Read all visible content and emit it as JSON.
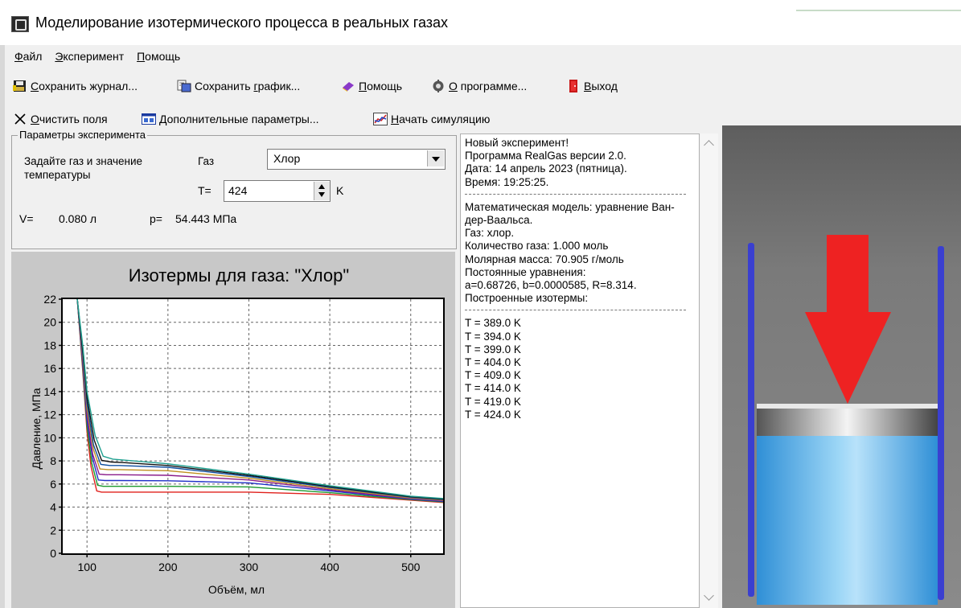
{
  "window": {
    "title": "Моделирование изотермического процесса в реальных газах"
  },
  "menu": {
    "items": [
      {
        "key": "Ф",
        "rest": "айл"
      },
      {
        "key": "Э",
        "rest": "ксперимент"
      },
      {
        "key": "П",
        "rest": "омощь"
      }
    ]
  },
  "toolbar1": {
    "save_log": {
      "key": "С",
      "rest": "охранить журнал..."
    },
    "save_chart": {
      "pre": "Сохранить ",
      "key": "г",
      "rest": "рафик..."
    },
    "help": {
      "key": "П",
      "rest": "омощь"
    },
    "about": {
      "key": "О",
      "rest": " программе..."
    },
    "exit": {
      "key": "В",
      "rest": "ыход"
    }
  },
  "toolbar2": {
    "clear": {
      "key": "О",
      "rest": "чистить поля"
    },
    "params": {
      "key": "Д",
      "rest": "ополнительные параметры..."
    },
    "start": {
      "key": "Н",
      "rest": "ачать симуляцию"
    }
  },
  "params": {
    "legend": "Параметры эксперимента",
    "hint": "Задайте газ и значение температуры",
    "gas_label": "Газ",
    "gas_value": "Хлор",
    "t_label": "T=",
    "t_value": "424",
    "t_unit": "K",
    "v_label": "V=",
    "v_value": "0.080 л",
    "p_label": "p=",
    "p_value": "54.443 МПа"
  },
  "chart_data": {
    "type": "line",
    "title": "Изотермы для газа: \"Хлор\"",
    "xlabel": "Объём, мл",
    "ylabel": "Давление, МПа",
    "xlim": [
      70,
      540
    ],
    "ylim": [
      0,
      22
    ],
    "xticks": [
      100,
      200,
      300,
      400,
      500
    ],
    "yticks": [
      0,
      2,
      4,
      6,
      8,
      10,
      12,
      14,
      16,
      18,
      20,
      22
    ],
    "grid": true,
    "series": [
      {
        "color": "#e0201c",
        "x": [
          88,
          95,
          100,
          105,
          112,
          118,
          140,
          200,
          300,
          400,
          450,
          500,
          540
        ],
        "y": [
          22,
          15.5,
          10.5,
          7.5,
          5.4,
          5.3,
          5.3,
          5.3,
          5.3,
          5.1,
          4.85,
          4.6,
          4.4
        ]
      },
      {
        "color": "#1c9a2e",
        "x": [
          88,
          95,
          100,
          106,
          113,
          120,
          140,
          200,
          300,
          400,
          450,
          500,
          540
        ],
        "y": [
          22,
          15.8,
          11,
          7.8,
          5.9,
          5.8,
          5.8,
          5.8,
          5.75,
          5.25,
          4.95,
          4.65,
          4.45
        ]
      },
      {
        "color": "#2030c8",
        "x": [
          88,
          95,
          100,
          107,
          114,
          122,
          140,
          200,
          300,
          400,
          450,
          500,
          540
        ],
        "y": [
          22,
          16.1,
          11.5,
          8.2,
          6.35,
          6.3,
          6.3,
          6.28,
          6.1,
          5.4,
          5.05,
          4.7,
          4.5
        ]
      },
      {
        "color": "#8a1c8a",
        "x": [
          88,
          95,
          100,
          107,
          115,
          124,
          140,
          200,
          300,
          400,
          450,
          500,
          540
        ],
        "y": [
          22,
          16.4,
          12,
          8.6,
          6.85,
          6.8,
          6.8,
          6.75,
          6.35,
          5.5,
          5.12,
          4.75,
          4.55
        ]
      },
      {
        "color": "#c09020",
        "x": [
          88,
          95,
          100,
          108,
          116,
          126,
          140,
          200,
          300,
          400,
          450,
          500,
          540
        ],
        "y": [
          22,
          16.8,
          12.5,
          9,
          7.3,
          7.25,
          7.25,
          7.15,
          6.5,
          5.6,
          5.2,
          4.8,
          4.6
        ]
      },
      {
        "color": "#1050a0",
        "x": [
          88,
          95,
          100,
          108,
          117,
          128,
          140,
          200,
          300,
          400,
          450,
          500,
          540
        ],
        "y": [
          22,
          17.1,
          13,
          9.4,
          7.7,
          7.6,
          7.6,
          7.45,
          6.65,
          5.7,
          5.28,
          4.85,
          4.65
        ]
      },
      {
        "color": "#101010",
        "x": [
          88,
          95,
          100,
          109,
          118,
          130,
          145,
          200,
          300,
          400,
          450,
          500,
          540
        ],
        "y": [
          22,
          17.4,
          13.5,
          9.8,
          8.05,
          7.9,
          7.85,
          7.6,
          6.75,
          5.78,
          5.33,
          4.9,
          4.7
        ]
      },
      {
        "color": "#20a090",
        "x": [
          88,
          95,
          100,
          110,
          120,
          132,
          150,
          200,
          300,
          400,
          450,
          500,
          540
        ],
        "y": [
          22,
          17.8,
          14,
          10.2,
          8.4,
          8.15,
          8.05,
          7.75,
          6.85,
          5.85,
          5.4,
          4.95,
          4.75
        ]
      }
    ]
  },
  "log": {
    "block1": [
      "Новый эксперимент!",
      "Программа RealGas версии 2.0.",
      "Дата: 14 апрель 2023 (пятница).",
      "Время: 19:25:25."
    ],
    "block2": [
      "Математическая модель: уравнение Ван-дер-Ваальса.",
      "Газ: хлор.",
      "Количество газа: 1.000 моль",
      "Молярная масса: 70.905 г/моль",
      "Постоянные уравнения:",
      "a=0.68726, b=0.0000585, R=8.314.",
      "Построенные изотермы:"
    ],
    "block3": [
      "T = 389.0 K",
      "T = 394.0 K",
      "T = 399.0 K",
      "T = 404.0 K",
      "T = 409.0 K",
      "T = 414.0 K",
      "T = 419.0 K",
      "T = 424.0 K"
    ]
  },
  "colors": {
    "chart_bg": "#c8c8c8",
    "arrow": "#ee2222",
    "cylinder_wall": "#3a3fd0",
    "gas": "#5ab2e6",
    "sim_bg": "#787878"
  }
}
